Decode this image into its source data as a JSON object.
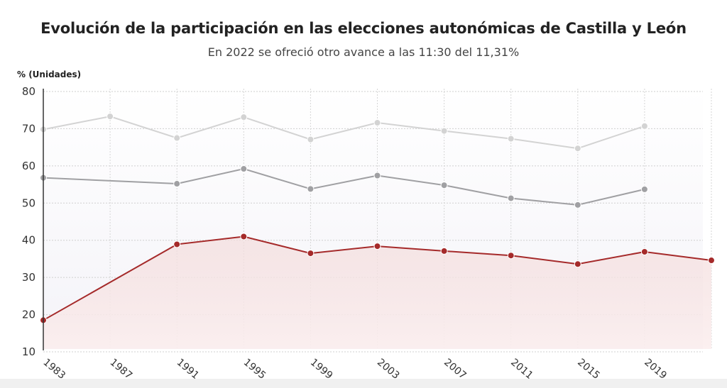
{
  "header": {
    "title": "Evolución de la participación en las elecciones autonómicas de Castilla y León",
    "subtitle": "En 2022 se ofreció otro avance a las 11:30 del 11,31%",
    "unit_label": "% (Unidades)"
  },
  "chart_data": {
    "type": "line",
    "title": "Evolución de la participación en las elecciones autonómicas de Castilla y León",
    "subtitle": "En 2022 se ofreció otro avance a las 11:30 del 11,31%",
    "ylabel": "% (Unidades)",
    "ylim": [
      10,
      80
    ],
    "yticks": [
      10,
      20,
      30,
      40,
      50,
      60,
      70,
      80
    ],
    "categories": [
      "1983",
      "1987",
      "1991",
      "1995",
      "1999",
      "2003",
      "2007",
      "2011",
      "2015",
      "2019",
      ""
    ],
    "grid": true,
    "legend": "none",
    "series": [
      {
        "color": "#d3d3d3",
        "values": [
          69.8,
          73.3,
          67.5,
          73.1,
          67.1,
          71.6,
          69.4,
          67.3,
          64.7,
          70.7,
          null
        ]
      },
      {
        "color": "#a0a0a3",
        "values": [
          56.8,
          null,
          55.2,
          59.2,
          53.8,
          57.4,
          54.8,
          51.3,
          49.5,
          53.7,
          null
        ]
      },
      {
        "color": "#a52a2a",
        "values": [
          18.5,
          null,
          38.9,
          41.0,
          36.5,
          38.4,
          37.1,
          35.9,
          33.6,
          36.9,
          34.6
        ]
      }
    ]
  }
}
